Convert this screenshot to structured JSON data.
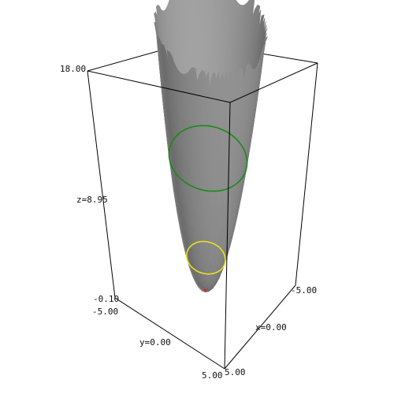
{
  "chart_data": {
    "type": "surface3d",
    "function": "z = x^2 + y^2",
    "x_range": [
      -5.0,
      5.0
    ],
    "y_range": [
      -5.0,
      5.0
    ],
    "z_range": [
      -0.1,
      18.0
    ],
    "labels": {
      "z_max": "18.00",
      "z_mid": "z=8.95",
      "z_min": "-0.10",
      "y_min": "-5.00",
      "y_mid": "y=0.00",
      "y_max": "5.00",
      "x_min": "-5.00",
      "x_mid": "x=0.00",
      "x_max": "5.00"
    },
    "contours": [
      {
        "level": 0.0,
        "color": "#c83232"
      },
      {
        "level": 2.2,
        "color": "#e8e020"
      },
      {
        "level": 8.95,
        "color": "#1a8a1a"
      }
    ],
    "colors": {
      "surface": "#7d7d7d",
      "box": "#000000",
      "background": "#ffffff"
    }
  }
}
